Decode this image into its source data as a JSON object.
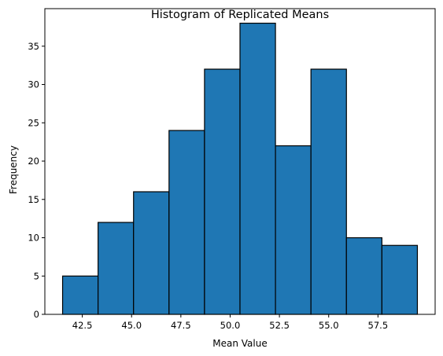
{
  "chart_data": {
    "type": "bar",
    "title": "Histogram of Replicated Means",
    "xlabel": "Mean Value",
    "ylabel": "Frequency",
    "bin_edges": [
      41.5,
      43.3,
      45.1,
      46.9,
      48.7,
      50.5,
      52.3,
      54.1,
      55.9,
      57.7,
      59.5
    ],
    "values": [
      5,
      12,
      16,
      24,
      32,
      38,
      22,
      32,
      10,
      9
    ],
    "xlim": [
      40.6,
      60.4
    ],
    "ylim": [
      0,
      39.9
    ],
    "xticks": [
      42.5,
      45.0,
      47.5,
      50.0,
      52.5,
      55.0,
      57.5
    ],
    "xtick_labels": [
      "42.5",
      "45.0",
      "47.5",
      "50.0",
      "52.5",
      "55.0",
      "57.5"
    ],
    "yticks": [
      0,
      5,
      10,
      15,
      20,
      25,
      30,
      35
    ],
    "ytick_labels": [
      "0",
      "5",
      "10",
      "15",
      "20",
      "25",
      "30",
      "35"
    ],
    "grid": false,
    "bar_color": "#1f77b4",
    "edge_color": "#000000"
  }
}
